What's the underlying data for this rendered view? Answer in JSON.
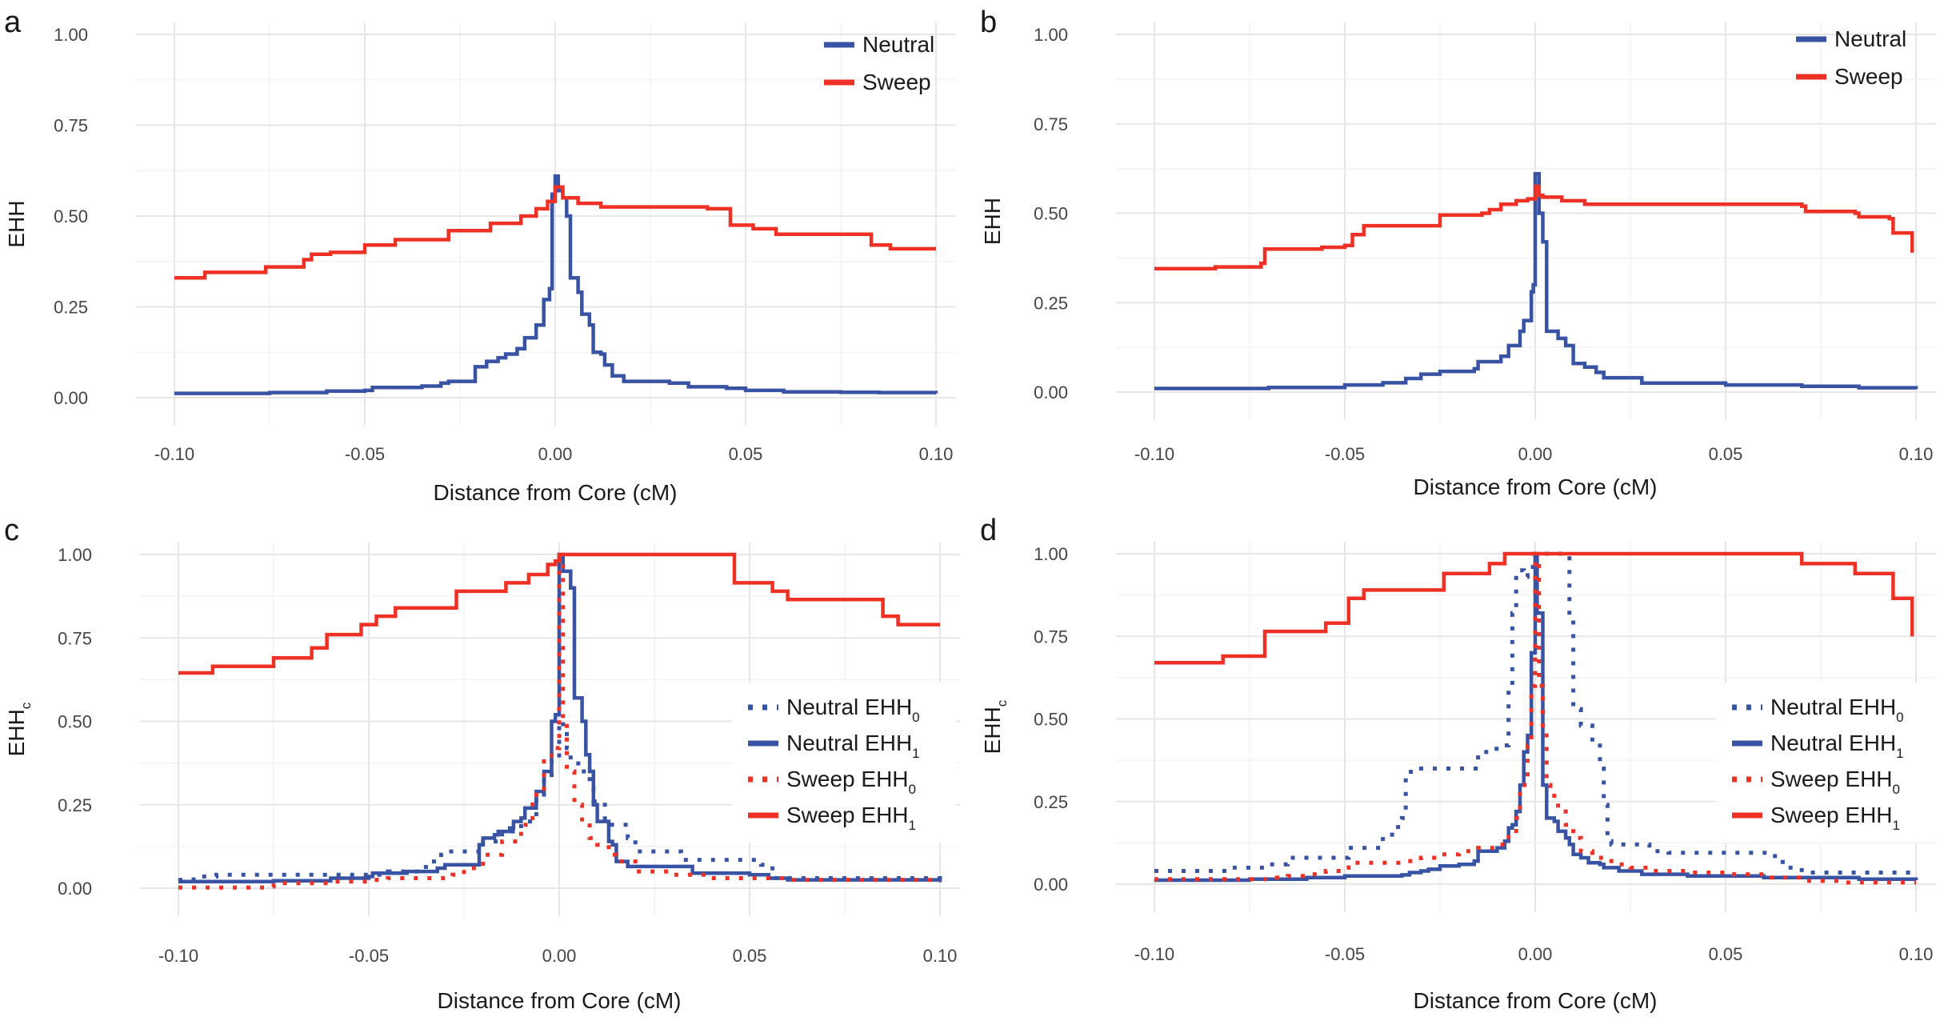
{
  "figure": {
    "colors": {
      "neutral": "#3953a4",
      "sweep": "#ee3124",
      "grid": "#e6e6e6",
      "text": "#1a1a1a"
    }
  },
  "chart_data": [
    {
      "panel": "a",
      "type": "line",
      "title": "",
      "xlabel": "Distance from Core (cM)",
      "ylabel": "EHH",
      "ylabel_sub": "",
      "xlim": [
        -0.1,
        0.1
      ],
      "ylim": [
        0,
        1
      ],
      "xticks": [
        "-0.10",
        "-0.05",
        "0.00",
        "0.05",
        "0.10"
      ],
      "yticks": [
        "0.00",
        "0.25",
        "0.50",
        "0.75",
        "1.00"
      ],
      "grid": true,
      "legend_position": "top-right",
      "series": [
        {
          "name": "Neutral",
          "name_sub": "",
          "color": "#3953a4",
          "dash": "solid",
          "x": [
            -0.1,
            -0.075,
            -0.06,
            -0.05,
            -0.048,
            -0.035,
            -0.03,
            -0.028,
            -0.022,
            -0.021,
            -0.018,
            -0.015,
            -0.013,
            -0.01,
            -0.008,
            -0.005,
            -0.003,
            -0.0015,
            -0.0008,
            0,
            0.0008,
            0.002,
            0.003,
            0.004,
            0.006,
            0.007,
            0.009,
            0.01,
            0.012,
            0.013,
            0.015,
            0.018,
            0.03,
            0.035,
            0.045,
            0.05,
            0.06,
            0.075,
            0.085,
            0.1
          ],
          "y": [
            0.012,
            0.014,
            0.018,
            0.02,
            0.028,
            0.032,
            0.04,
            0.045,
            0.045,
            0.085,
            0.1,
            0.11,
            0.12,
            0.135,
            0.165,
            0.2,
            0.27,
            0.3,
            0.56,
            0.61,
            0.57,
            0.55,
            0.5,
            0.33,
            0.29,
            0.23,
            0.2,
            0.125,
            0.12,
            0.09,
            0.06,
            0.045,
            0.04,
            0.03,
            0.026,
            0.02,
            0.016,
            0.015,
            0.014,
            0.012
          ]
        },
        {
          "name": "Sweep",
          "name_sub": "",
          "color": "#ee3124",
          "dash": "solid",
          "x": [
            -0.1,
            -0.092,
            -0.076,
            -0.066,
            -0.064,
            -0.059,
            -0.05,
            -0.042,
            -0.028,
            -0.017,
            -0.009,
            -0.005,
            -0.002,
            0,
            0.002,
            0.006,
            0.012,
            0.04,
            0.046,
            0.052,
            0.058,
            0.083,
            0.088,
            0.1
          ],
          "y": [
            0.33,
            0.345,
            0.36,
            0.38,
            0.395,
            0.4,
            0.42,
            0.435,
            0.46,
            0.48,
            0.5,
            0.52,
            0.54,
            0.58,
            0.55,
            0.535,
            0.525,
            0.52,
            0.475,
            0.465,
            0.45,
            0.42,
            0.41,
            0.41
          ]
        }
      ]
    },
    {
      "panel": "b",
      "type": "line",
      "title": "",
      "xlabel": "Distance from Core (cM)",
      "ylabel": "EHH",
      "ylabel_sub": "",
      "xlim": [
        -0.1,
        0.1
      ],
      "ylim": [
        0,
        1
      ],
      "xticks": [
        "-0.10",
        "-0.05",
        "0.00",
        "0.05",
        "0.10"
      ],
      "yticks": [
        "0.00",
        "0.25",
        "0.50",
        "0.75",
        "1.00"
      ],
      "grid": true,
      "legend_position": "top-right",
      "series": [
        {
          "name": "Neutral",
          "name_sub": "",
          "color": "#3953a4",
          "dash": "solid",
          "x": [
            -0.1,
            -0.07,
            -0.05,
            -0.04,
            -0.034,
            -0.03,
            -0.025,
            -0.016,
            -0.015,
            -0.009,
            -0.007,
            -0.004,
            -0.003,
            -0.001,
            -0.0005,
            0,
            0.001,
            0.002,
            0.003,
            0.006,
            0.008,
            0.01,
            0.013,
            0.016,
            0.018,
            0.028,
            0.05,
            0.07,
            0.085,
            0.1
          ],
          "y": [
            0.01,
            0.013,
            0.02,
            0.026,
            0.038,
            0.05,
            0.058,
            0.065,
            0.085,
            0.1,
            0.13,
            0.17,
            0.2,
            0.28,
            0.3,
            0.61,
            0.5,
            0.42,
            0.17,
            0.15,
            0.13,
            0.08,
            0.07,
            0.055,
            0.04,
            0.025,
            0.02,
            0.016,
            0.012,
            0.008
          ]
        },
        {
          "name": "Sweep",
          "name_sub": "",
          "color": "#ee3124",
          "dash": "solid",
          "x": [
            -0.1,
            -0.084,
            -0.072,
            -0.071,
            -0.056,
            -0.05,
            -0.048,
            -0.045,
            -0.025,
            -0.014,
            -0.012,
            -0.009,
            -0.005,
            -0.002,
            0,
            0.001,
            0.002,
            0.007,
            0.013,
            0.07,
            0.071,
            0.084,
            0.085,
            0.093,
            0.094,
            0.098,
            0.099
          ],
          "y": [
            0.345,
            0.35,
            0.36,
            0.4,
            0.405,
            0.41,
            0.44,
            0.465,
            0.495,
            0.5,
            0.51,
            0.525,
            0.535,
            0.54,
            0.575,
            0.55,
            0.545,
            0.535,
            0.525,
            0.52,
            0.505,
            0.5,
            0.49,
            0.485,
            0.445,
            0.445,
            0.39
          ]
        }
      ]
    },
    {
      "panel": "c",
      "type": "line",
      "title": "",
      "xlabel": "Distance from Core (cM)",
      "ylabel": "EHH",
      "ylabel_sub": "c",
      "xlim": [
        -0.1,
        0.1
      ],
      "ylim": [
        0,
        1
      ],
      "xticks": [
        "-0.10",
        "-0.05",
        "0.00",
        "0.05",
        "0.10"
      ],
      "yticks": [
        "0.00",
        "0.25",
        "0.50",
        "0.75",
        "1.00"
      ],
      "grid": true,
      "legend_position": "right",
      "series": [
        {
          "name": "Neutral EHH",
          "name_sub": "0",
          "color": "#3953a4",
          "dash": "dotted",
          "x": [
            -0.1,
            -0.096,
            -0.09,
            -0.05,
            -0.045,
            -0.035,
            -0.031,
            -0.03,
            -0.02,
            -0.015,
            -0.01,
            -0.006,
            -0.004,
            -0.002,
            0,
            0.001,
            0.002,
            0.003,
            0.005,
            0.008,
            0.009,
            0.012,
            0.015,
            0.018,
            0.02,
            0.03,
            0.032,
            0.05,
            0.053,
            0.056,
            0.1
          ],
          "y": [
            0.025,
            0.035,
            0.04,
            0.04,
            0.05,
            0.08,
            0.1,
            0.11,
            0.14,
            0.17,
            0.2,
            0.27,
            0.33,
            0.38,
            0.5,
            0.47,
            0.42,
            0.38,
            0.35,
            0.3,
            0.26,
            0.19,
            0.19,
            0.15,
            0.11,
            0.11,
            0.085,
            0.085,
            0.07,
            0.03,
            0.02
          ]
        },
        {
          "name": "Neutral EHH",
          "name_sub": "1",
          "color": "#3953a4",
          "dash": "solid",
          "x": [
            -0.1,
            -0.075,
            -0.06,
            -0.05,
            -0.049,
            -0.04,
            -0.032,
            -0.03,
            -0.022,
            -0.021,
            -0.02,
            -0.017,
            -0.016,
            -0.013,
            -0.012,
            -0.01,
            -0.009,
            -0.006,
            -0.005,
            -0.004,
            -0.002,
            -0.001,
            0,
            0.001,
            0.002,
            0.003,
            0.004,
            0.006,
            0.007,
            0.008,
            0.009,
            0.01,
            0.012,
            0.013,
            0.014,
            0.015,
            0.018,
            0.034,
            0.035,
            0.05,
            0.055,
            0.06,
            0.1
          ],
          "y": [
            0.02,
            0.022,
            0.03,
            0.035,
            0.045,
            0.05,
            0.06,
            0.07,
            0.07,
            0.13,
            0.15,
            0.16,
            0.17,
            0.18,
            0.2,
            0.21,
            0.24,
            0.29,
            0.29,
            0.35,
            0.5,
            0.52,
            1.0,
            0.95,
            0.95,
            0.9,
            0.57,
            0.5,
            0.4,
            0.35,
            0.25,
            0.2,
            0.2,
            0.14,
            0.13,
            0.08,
            0.065,
            0.065,
            0.045,
            0.04,
            0.03,
            0.025,
            0.018
          ]
        },
        {
          "name": "Sweep EHH",
          "name_sub": "0",
          "color": "#ee3124",
          "dash": "dotted",
          "x": [
            -0.1,
            -0.077,
            -0.075,
            -0.06,
            -0.05,
            -0.045,
            -0.03,
            -0.028,
            -0.025,
            -0.02,
            -0.015,
            -0.01,
            -0.007,
            -0.004,
            -0.002,
            0,
            0.001,
            0.002,
            0.004,
            0.006,
            0.008,
            0.01,
            0.013,
            0.015,
            0.02,
            0.03,
            0.04,
            0.06,
            0.1
          ],
          "y": [
            0.002,
            0.005,
            0.015,
            0.02,
            0.025,
            0.03,
            0.03,
            0.04,
            0.06,
            0.1,
            0.14,
            0.19,
            0.28,
            0.38,
            0.42,
            0.99,
            0.5,
            0.35,
            0.25,
            0.2,
            0.15,
            0.13,
            0.1,
            0.08,
            0.05,
            0.04,
            0.03,
            0.025,
            0.02
          ]
        },
        {
          "name": "Sweep EHH",
          "name_sub": "1",
          "color": "#ee3124",
          "dash": "solid",
          "x": [
            -0.1,
            -0.092,
            -0.091,
            -0.076,
            -0.075,
            -0.066,
            -0.065,
            -0.062,
            -0.061,
            -0.053,
            -0.052,
            -0.049,
            -0.048,
            -0.044,
            -0.043,
            -0.028,
            -0.027,
            -0.015,
            -0.014,
            -0.009,
            -0.008,
            -0.004,
            -0.003,
            -0.001,
            0,
            0.045,
            0.046,
            0.055,
            0.056,
            0.059,
            0.06,
            0.084,
            0.085,
            0.088,
            0.089,
            0.1
          ],
          "y": [
            0.645,
            0.645,
            0.665,
            0.665,
            0.69,
            0.69,
            0.72,
            0.72,
            0.76,
            0.76,
            0.79,
            0.79,
            0.815,
            0.815,
            0.84,
            0.84,
            0.89,
            0.89,
            0.915,
            0.915,
            0.94,
            0.94,
            0.97,
            0.98,
            1.0,
            1.0,
            0.915,
            0.915,
            0.89,
            0.89,
            0.865,
            0.865,
            0.815,
            0.815,
            0.79,
            0.79
          ]
        }
      ]
    },
    {
      "panel": "d",
      "type": "line",
      "title": "",
      "xlabel": "Distance from Core (cM)",
      "ylabel": "EHH",
      "ylabel_sub": "c",
      "xlim": [
        -0.1,
        0.1
      ],
      "ylim": [
        0,
        1
      ],
      "xticks": [
        "-0.10",
        "-0.05",
        "0.00",
        "0.05",
        "0.10"
      ],
      "yticks": [
        "0.00",
        "0.25",
        "0.50",
        "0.75",
        "1.00"
      ],
      "grid": true,
      "legend_position": "right",
      "series": [
        {
          "name": "Neutral EHH",
          "name_sub": "0",
          "color": "#3953a4",
          "dash": "dotted",
          "x": [
            -0.1,
            -0.08,
            -0.07,
            -0.065,
            -0.05,
            -0.049,
            -0.045,
            -0.04,
            -0.036,
            -0.035,
            -0.034,
            -0.032,
            -0.025,
            -0.016,
            -0.015,
            -0.012,
            -0.008,
            -0.007,
            -0.006,
            -0.005,
            -0.003,
            -0.002,
            0,
            0.008,
            0.009,
            0.01,
            0.012,
            0.015,
            0.017,
            0.018,
            0.019,
            0.02,
            0.025,
            0.03,
            0.035,
            0.06,
            0.062,
            0.065,
            0.07,
            0.1
          ],
          "y": [
            0.04,
            0.05,
            0.06,
            0.08,
            0.08,
            0.11,
            0.11,
            0.15,
            0.19,
            0.2,
            0.34,
            0.35,
            0.35,
            0.35,
            0.4,
            0.41,
            0.42,
            0.6,
            0.82,
            0.95,
            0.93,
            0.96,
            1.0,
            1.0,
            0.8,
            0.53,
            0.48,
            0.43,
            0.35,
            0.24,
            0.13,
            0.12,
            0.12,
            0.1,
            0.095,
            0.095,
            0.085,
            0.05,
            0.035,
            0.03
          ]
        },
        {
          "name": "Neutral EHH",
          "name_sub": "1",
          "color": "#3953a4",
          "dash": "solid",
          "x": [
            -0.1,
            -0.075,
            -0.06,
            -0.05,
            -0.035,
            -0.033,
            -0.03,
            -0.028,
            -0.025,
            -0.02,
            -0.016,
            -0.015,
            -0.01,
            -0.008,
            -0.007,
            -0.006,
            -0.005,
            -0.004,
            -0.003,
            -0.002,
            -0.001,
            0,
            0.0005,
            0.002,
            0.003,
            0.005,
            0.006,
            0.008,
            0.009,
            0.01,
            0.012,
            0.014,
            0.017,
            0.018,
            0.022,
            0.028,
            0.04,
            0.06,
            0.083,
            0.085,
            0.1
          ],
          "y": [
            0.012,
            0.015,
            0.02,
            0.025,
            0.028,
            0.035,
            0.04,
            0.045,
            0.055,
            0.06,
            0.07,
            0.1,
            0.11,
            0.13,
            0.17,
            0.18,
            0.22,
            0.3,
            0.4,
            0.45,
            0.7,
            1.0,
            0.82,
            0.3,
            0.2,
            0.19,
            0.16,
            0.14,
            0.12,
            0.09,
            0.08,
            0.065,
            0.06,
            0.05,
            0.04,
            0.03,
            0.025,
            0.02,
            0.02,
            0.015,
            0.012
          ]
        },
        {
          "name": "Sweep EHH",
          "name_sub": "0",
          "color": "#ee3124",
          "dash": "dotted",
          "x": [
            -0.1,
            -0.075,
            -0.07,
            -0.065,
            -0.06,
            -0.055,
            -0.05,
            -0.049,
            -0.04,
            -0.035,
            -0.03,
            -0.025,
            -0.02,
            -0.015,
            -0.01,
            -0.007,
            -0.005,
            -0.004,
            -0.002,
            -0.001,
            0,
            0.001,
            0.002,
            0.003,
            0.004,
            0.005,
            0.006,
            0.008,
            0.01,
            0.012,
            0.015,
            0.02,
            0.025,
            0.03,
            0.04,
            0.05,
            0.06,
            0.07,
            0.08,
            0.1
          ],
          "y": [
            0.015,
            0.015,
            0.02,
            0.025,
            0.03,
            0.04,
            0.05,
            0.065,
            0.065,
            0.07,
            0.08,
            0.09,
            0.1,
            0.11,
            0.12,
            0.15,
            0.2,
            0.3,
            0.42,
            0.6,
            0.98,
            0.6,
            0.45,
            0.3,
            0.28,
            0.25,
            0.22,
            0.18,
            0.14,
            0.1,
            0.08,
            0.06,
            0.05,
            0.04,
            0.035,
            0.03,
            0.02,
            0.01,
            0.005,
            0.005
          ]
        },
        {
          "name": "Sweep EHH",
          "name_sub": "1",
          "color": "#ee3124",
          "dash": "solid",
          "x": [
            -0.1,
            -0.084,
            -0.082,
            -0.072,
            -0.071,
            -0.056,
            -0.055,
            -0.05,
            -0.049,
            -0.046,
            -0.045,
            -0.025,
            -0.024,
            -0.013,
            -0.012,
            -0.009,
            -0.008,
            0.069,
            0.07,
            0.083,
            0.084,
            0.093,
            0.094,
            0.098,
            0.099
          ],
          "y": [
            0.67,
            0.67,
            0.69,
            0.69,
            0.765,
            0.765,
            0.79,
            0.79,
            0.865,
            0.865,
            0.89,
            0.89,
            0.94,
            0.94,
            0.97,
            0.97,
            1.0,
            1.0,
            0.97,
            0.97,
            0.94,
            0.94,
            0.865,
            0.865,
            0.75
          ]
        }
      ]
    }
  ],
  "panels": [
    {
      "letter": "a"
    },
    {
      "letter": "b"
    },
    {
      "letter": "c"
    },
    {
      "letter": "d"
    }
  ]
}
